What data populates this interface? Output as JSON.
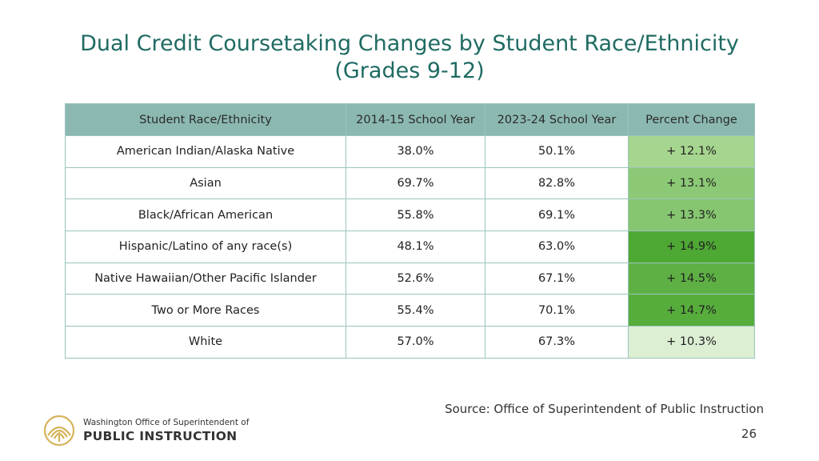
{
  "title": {
    "line1": "Dual Credit Coursetaking Changes by Student Race/Ethnicity",
    "line2": "(Grades 9-12)"
  },
  "table": {
    "headers": [
      "Student Race/Ethnicity",
      "2014-15 School Year",
      "2023-24 School Year",
      "Percent Change"
    ],
    "rows": [
      {
        "group": "American Indian/Alaska Native",
        "y2014": "38.0%",
        "y2023": "50.1%",
        "change": "+ 12.1%",
        "change_color": "#a6d58f"
      },
      {
        "group": "Asian",
        "y2014": "69.7%",
        "y2023": "82.8%",
        "change": "+ 13.1%",
        "change_color": "#8cc976"
      },
      {
        "group": "Black/African American",
        "y2014": "55.8%",
        "y2023": "69.1%",
        "change": "+ 13.3%",
        "change_color": "#86c670"
      },
      {
        "group": "Hispanic/Latino of any race(s)",
        "y2014": "48.1%",
        "y2023": "63.0%",
        "change": "+ 14.9%",
        "change_color": "#4ea834"
      },
      {
        "group": "Native Hawaiian/Other Pacific Islander",
        "y2014": "52.6%",
        "y2023": "67.1%",
        "change": "+ 14.5%",
        "change_color": "#5eb044"
      },
      {
        "group": "Two or More Races",
        "y2014": "55.4%",
        "y2023": "70.1%",
        "change": "+ 14.7%",
        "change_color": "#56ad3c"
      },
      {
        "group": "White",
        "y2014": "57.0%",
        "y2023": "67.3%",
        "change": "+ 10.3%",
        "change_color": "#dcefd3"
      }
    ]
  },
  "source": "Source: Office of Superintendent of Public Instruction",
  "page_number": "26",
  "org": {
    "line1": "Washington Office of Superintendent of",
    "line2": "PUBLIC INSTRUCTION",
    "logo_icon": "ospi-sun-logo-icon",
    "logo_color": "#d6b35a"
  }
}
